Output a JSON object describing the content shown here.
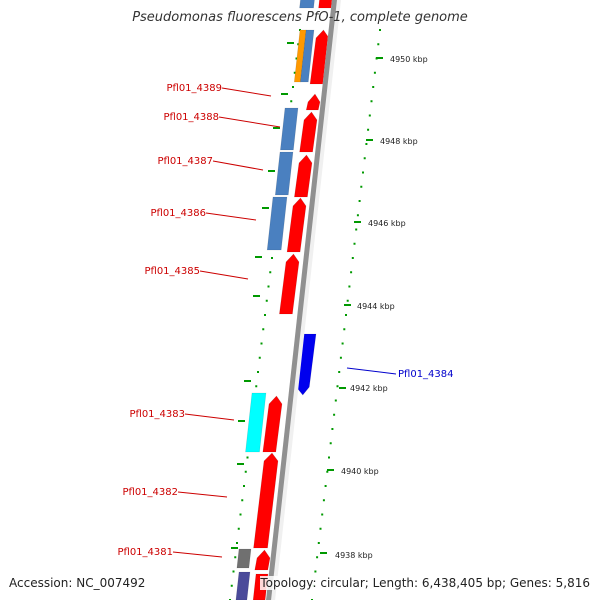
{
  "map": {
    "title": "Pseudomonas fluorescens PfO-1, complete genome",
    "accession": "Accession: NC_007492",
    "summary": "Topology: circular; Length: 6,438,405 bp; Genes: 5,816"
  },
  "colors": {
    "backbone": "#909090",
    "forward_gene": "#ff0000",
    "reverse_gene": "#0000ee",
    "cds_blue": "#4a80c0",
    "cds_orange": "#ff9900",
    "cds_cyan": "#00ffff",
    "cds_gray": "#707070",
    "cds_purple": "#4b4b9a",
    "tick_green": "#009900",
    "label_red": "#cc0000",
    "label_blue": "#0000cc"
  },
  "gene_labels": [
    {
      "id": "pfl4389",
      "text": "Pfl01_4389",
      "color": "red"
    },
    {
      "id": "pfl4388",
      "text": "Pfl01_4388",
      "color": "red"
    },
    {
      "id": "pfl4387",
      "text": "Pfl01_4387",
      "color": "red"
    },
    {
      "id": "pfl4386",
      "text": "Pfl01_4386",
      "color": "red"
    },
    {
      "id": "pfl4385",
      "text": "Pfl01_4385",
      "color": "red"
    },
    {
      "id": "pfl4384",
      "text": "Pfl01_4384",
      "color": "blue"
    },
    {
      "id": "pfl4383",
      "text": "Pfl01_4383",
      "color": "red"
    },
    {
      "id": "pfl4382",
      "text": "Pfl01_4382",
      "color": "red"
    },
    {
      "id": "pfl4381",
      "text": "Pfl01_4381",
      "color": "red"
    }
  ],
  "ruler_labels": [
    {
      "id": "kbp4950",
      "text": "4950 kbp"
    },
    {
      "id": "kbp4948",
      "text": "4948 kbp"
    },
    {
      "id": "kbp4946",
      "text": "4946 kbp"
    },
    {
      "id": "kbp4944",
      "text": "4944 kbp"
    },
    {
      "id": "kbp4942",
      "text": "4942 kbp"
    },
    {
      "id": "kbp4940",
      "text": "4940 kbp"
    },
    {
      "id": "kbp4938",
      "text": "4938 kbp"
    }
  ]
}
